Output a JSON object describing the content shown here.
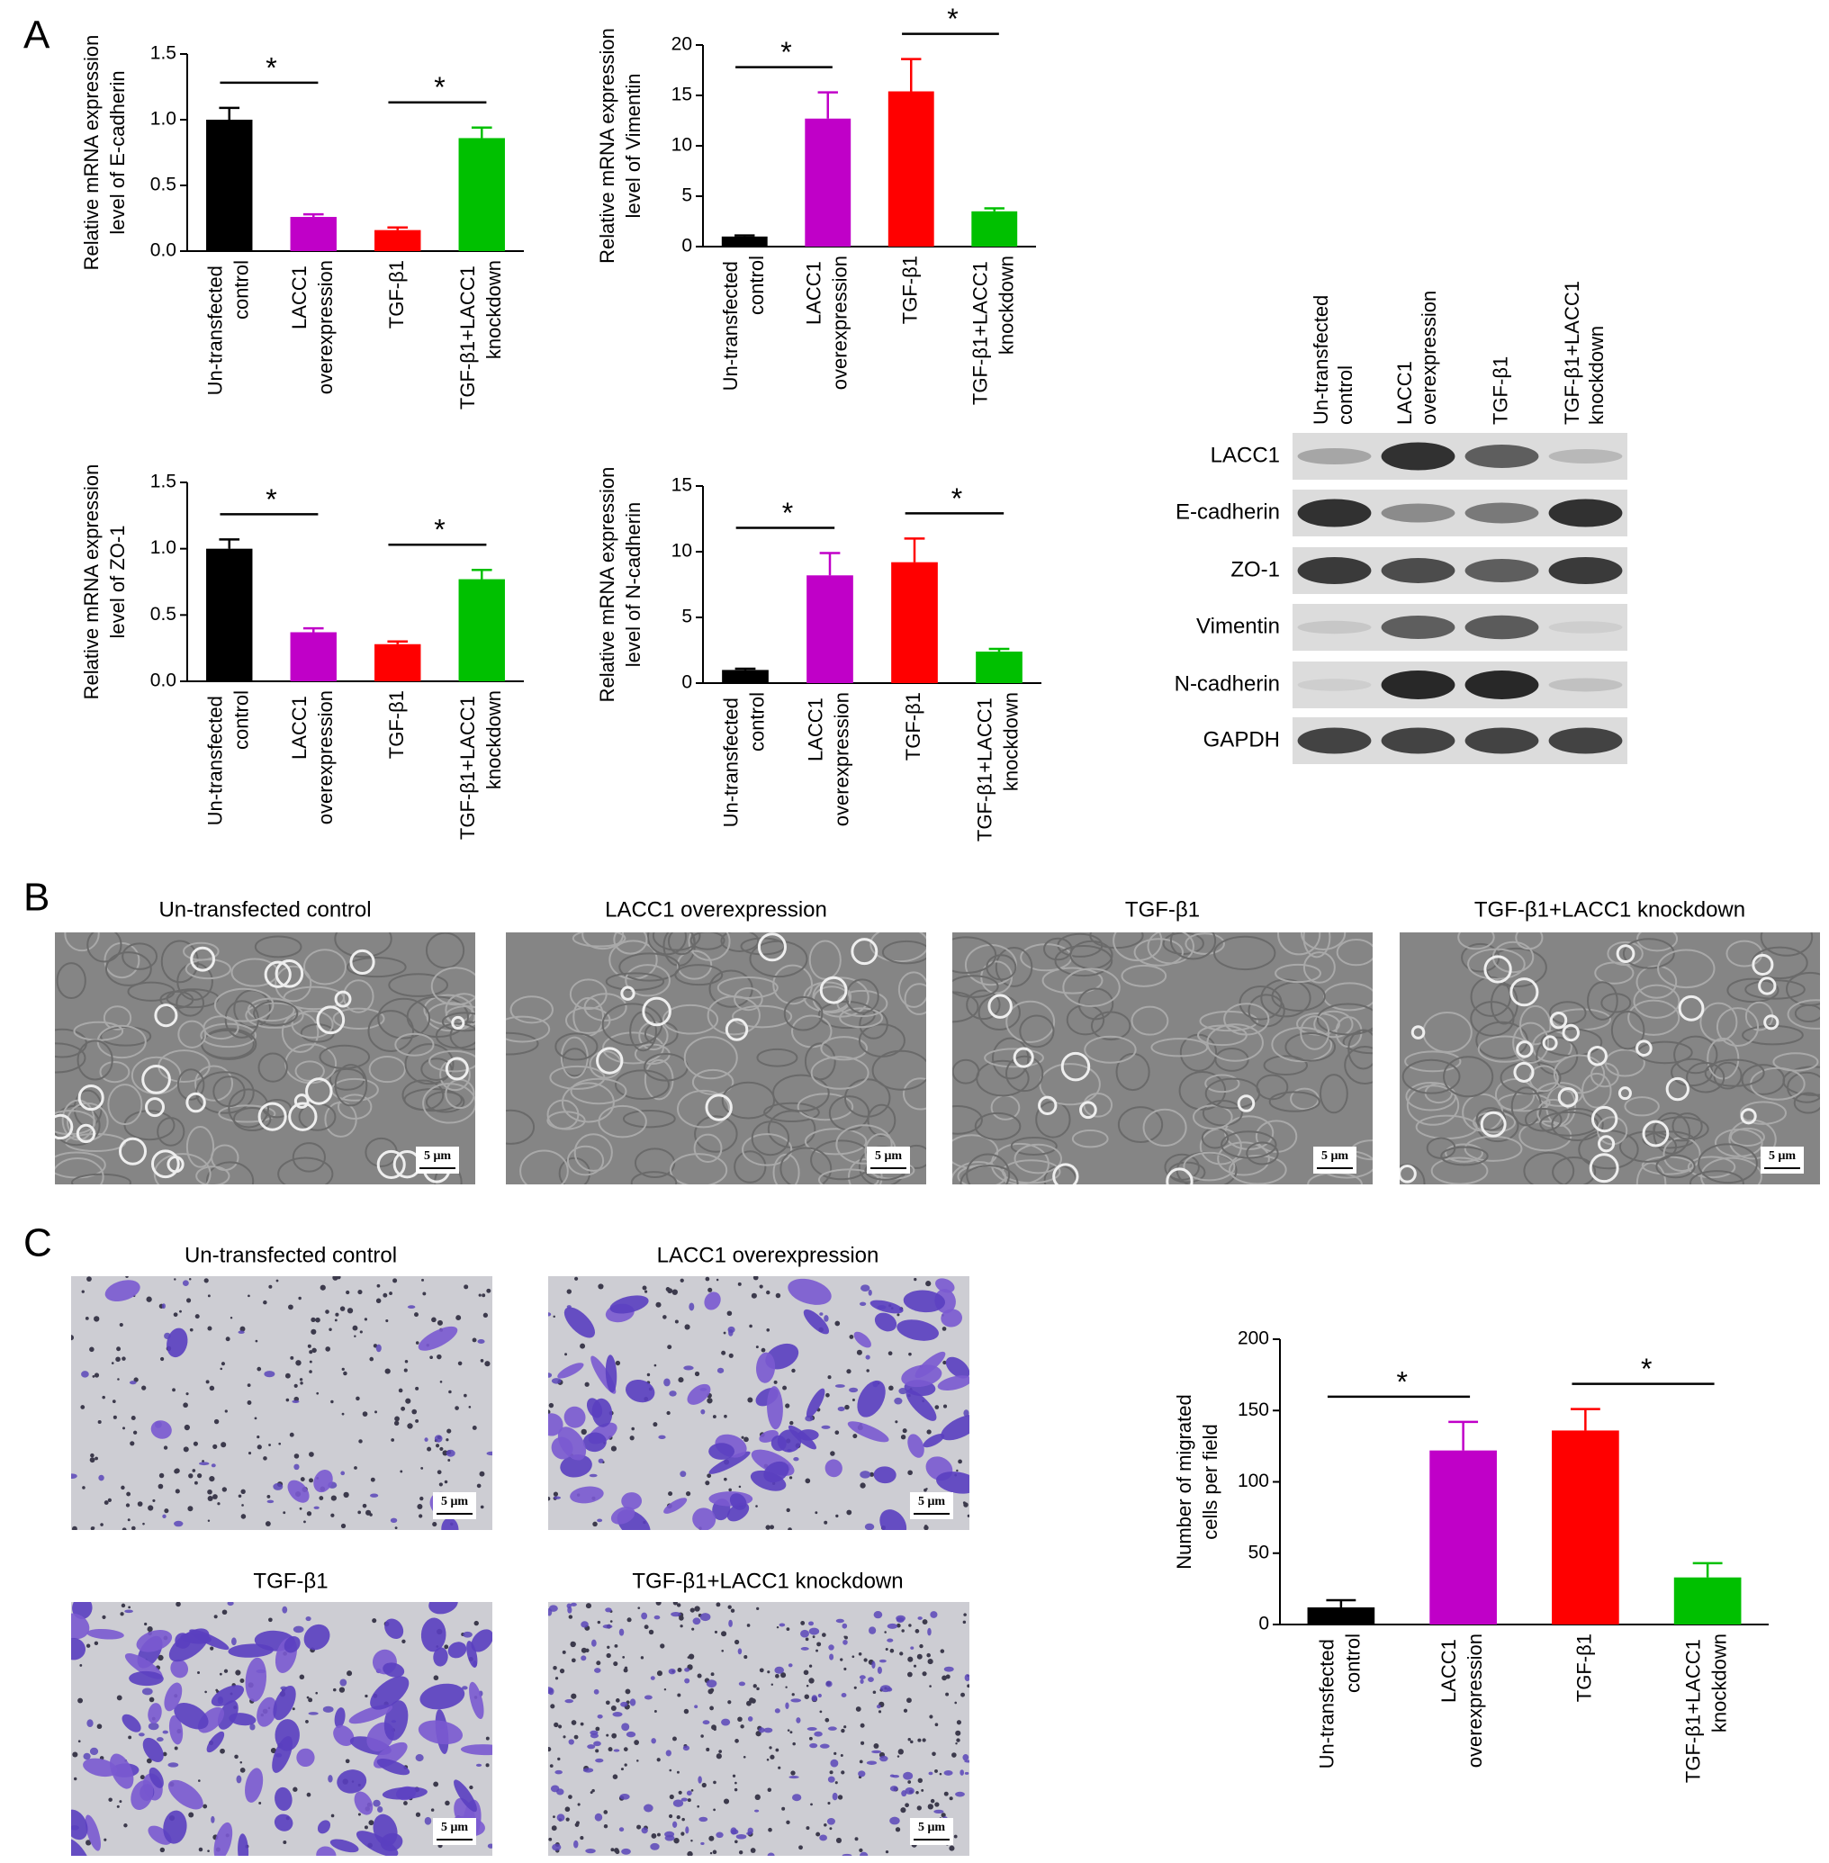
{
  "panel_labels": [
    "A",
    "B",
    "C"
  ],
  "chart_data": [
    {
      "type": "bar",
      "ylabel": [
        "Relative mRNA expression",
        "level of E-cadherin"
      ],
      "categories": [
        "Un-transfected control",
        "LACC1 overexpression",
        "TGF-β1",
        "TGF-β1+LACC1 knockdown"
      ],
      "values": [
        1.0,
        0.26,
        0.16,
        0.86
      ],
      "errors": [
        0.09,
        0.02,
        0.02,
        0.08
      ],
      "colors": [
        "#000000",
        "#c000c8",
        "#ff0000",
        "#00c000"
      ],
      "ylim": [
        0,
        1.5
      ],
      "yticks": [
        {
          "value": 0,
          "label": "0.0"
        },
        0.5,
        {
          "value": 1,
          "label": "1.0"
        },
        1.5
      ],
      "significance": [
        {
          "label": "*",
          "pair": [
            0,
            1
          ]
        },
        {
          "label": "*",
          "pair": [
            2,
            3
          ]
        }
      ]
    },
    {
      "type": "bar",
      "ylabel": [
        "Relative mRNA expression",
        "level of Vimentin"
      ],
      "categories": [
        "Un-transfected control",
        "LACC1 overexpression",
        "TGF-β1",
        "TGF-β1+LACC1 knockdown"
      ],
      "values": [
        1.0,
        12.7,
        15.4,
        3.5
      ],
      "errors": [
        0.1,
        2.6,
        3.2,
        0.3
      ],
      "colors": [
        "#000000",
        "#c000c8",
        "#ff0000",
        "#00c000"
      ],
      "ylim": [
        0,
        20
      ],
      "yticks": [
        0,
        5,
        10,
        15,
        20
      ],
      "significance": [
        {
          "label": "*",
          "pair": [
            0,
            1
          ]
        },
        {
          "label": "*",
          "pair": [
            2,
            3
          ]
        }
      ]
    },
    {
      "type": "bar",
      "ylabel": [
        "Relative mRNA expression",
        "level of ZO-1"
      ],
      "categories": [
        "Un-transfected control",
        "LACC1 overexpression",
        "TGF-β1",
        "TGF-β1+LACC1 knockdown"
      ],
      "values": [
        1.0,
        0.37,
        0.28,
        0.77
      ],
      "errors": [
        0.07,
        0.03,
        0.02,
        0.07
      ],
      "colors": [
        "#000000",
        "#c000c8",
        "#ff0000",
        "#00c000"
      ],
      "ylim": [
        0,
        1.5
      ],
      "yticks": [
        {
          "value": 0,
          "label": "0.0"
        },
        0.5,
        {
          "value": 1,
          "label": "1.0"
        },
        1.5
      ],
      "significance": [
        {
          "label": "*",
          "pair": [
            0,
            1
          ]
        },
        {
          "label": "*",
          "pair": [
            2,
            3
          ]
        }
      ]
    },
    {
      "type": "bar",
      "ylabel": [
        "Relative mRNA expression",
        "level of N-cadherin"
      ],
      "categories": [
        "Un-transfected control",
        "LACC1 overexpression",
        "TGF-β1",
        "TGF-β1+LACC1 knockdown"
      ],
      "values": [
        1.0,
        8.2,
        9.2,
        2.4
      ],
      "errors": [
        0.1,
        1.7,
        1.8,
        0.2
      ],
      "colors": [
        "#000000",
        "#c000c8",
        "#ff0000",
        "#00c000"
      ],
      "ylim": [
        0,
        15
      ],
      "yticks": [
        0,
        5,
        10,
        15
      ],
      "significance": [
        {
          "label": "*",
          "pair": [
            0,
            1
          ]
        },
        {
          "label": "*",
          "pair": [
            2,
            3
          ]
        }
      ]
    },
    {
      "type": "bar",
      "ylabel": [
        "Number of migrated",
        "cells per field"
      ],
      "categories": [
        "Un-transfected control",
        "LACC1 overexpression",
        "TGF-β1",
        "TGF-β1+LACC1 knockdown"
      ],
      "values": [
        12,
        122,
        136,
        33
      ],
      "errors": [
        5,
        20,
        15,
        10
      ],
      "colors": [
        "#000000",
        "#c000c8",
        "#ff0000",
        "#00c000"
      ],
      "ylim": [
        0,
        200
      ],
      "yticks": [
        0,
        50,
        100,
        150,
        200
      ],
      "significance": [
        {
          "label": "*",
          "pair": [
            0,
            1
          ]
        },
        {
          "label": "*",
          "pair": [
            2,
            3
          ]
        }
      ]
    }
  ],
  "western_blot": {
    "lanes": [
      "Un-transfected control",
      "LACC1 overexpression",
      "TGF-β1",
      "TGF-β1+LACC1 knockdown"
    ],
    "proteins": [
      "LACC1",
      "E-cadherin",
      "ZO-1",
      "Vimentin",
      "N-cadherin",
      "GAPDH"
    ]
  },
  "morphology": {
    "titles": [
      "Un-transfected control",
      "LACC1 overexpression",
      "TGF-β1",
      "TGF-β1+LACC1 knockdown"
    ]
  },
  "transwell": {
    "titles": [
      "Un-transfected control",
      "LACC1 overexpression",
      "TGF-β1",
      "TGF-β1+LACC1 knockdown"
    ]
  },
  "scale_bar": "5 μm"
}
